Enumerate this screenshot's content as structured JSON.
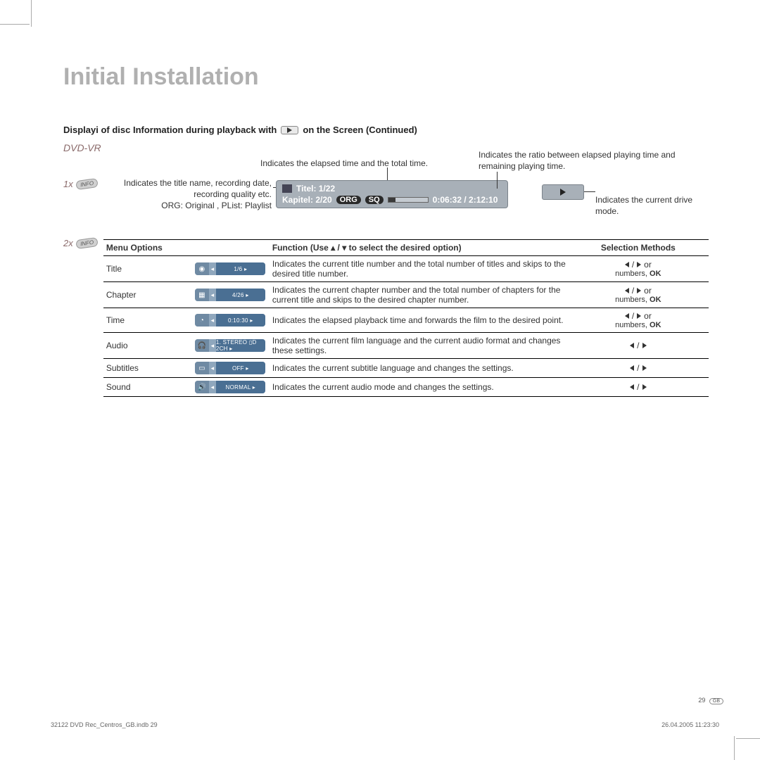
{
  "main_title": "Initial Installation",
  "section_title_part1": "Displayi of disc Information during playback with",
  "section_title_part2": "on the Screen (Continued)",
  "dvd_vr": "DVD-VR",
  "press_1x": "1x",
  "press_2x": "2x",
  "info_label": "INFO",
  "annot_elapsed": "Indicates the elapsed time and the total time.",
  "annot_ratio": "Indicates the ratio between elapsed playing time and remaining playing time.",
  "annot_titlename": "Indicates the title name, recording date, recording quality etc.",
  "annot_org": "ORG: Original , PList: Playlist",
  "annot_drive": "Indicates the current drive mode.",
  "badge": {
    "title": "Titel: 1/22",
    "chapter": "Kapitel: 2/20",
    "tag1": "ORG",
    "tag2": "SQ",
    "time": "0:06:32  /  2:12:10",
    "progress_pct": 18
  },
  "table": {
    "head_menu": "Menu Options",
    "head_func_prefix": "Function (Use",
    "head_func_suffix": "to select the desired option)",
    "head_sel": "Selection Methods",
    "rows": [
      {
        "label": "Title",
        "chip_icon": "◉",
        "chip_val": "1/6",
        "func": "Indicates the current title number and the total number of titles and skips to the desired title number.",
        "sel_type": "lr_or_numbers"
      },
      {
        "label": "Chapter",
        "chip_icon": "▦",
        "chip_val": "4/26",
        "func": "Indicates the current chapter number and the total number of chapters for the current title and skips to the desired chapter number.",
        "sel_type": "lr_or_numbers"
      },
      {
        "label": "Time",
        "chip_icon": "◔",
        "chip_val": "0:10:30",
        "func": "Indicates the elapsed playback time and forwards the film to the desired point.",
        "sel_type": "lr_or_numbers"
      },
      {
        "label": "Audio",
        "chip_icon": "🎧",
        "chip_val": "1. STEREO ▯D 2CH",
        "func": "Indicates the current film language and the current audio format and changes these settings.",
        "sel_type": "lr"
      },
      {
        "label": "Subtitles",
        "chip_icon": "▭",
        "chip_val": "OFF",
        "func": "Indicates the current subtitle language and changes the settings.",
        "sel_type": "lr"
      },
      {
        "label": "Sound",
        "chip_icon": "🔊",
        "chip_val": "NORMAL",
        "func": "Indicates the current audio mode and changes the settings.",
        "sel_type": "lr"
      }
    ],
    "or_text": "or",
    "numbers_text": "numbers,",
    "ok_text": "OK"
  },
  "footer": {
    "page_num": "29",
    "gb": "GB",
    "left": "32122 DVD Rec_Centros_GB.indb   29",
    "right": "26.04.2005   11:23:30"
  },
  "colors": {
    "title_gray": "#b0b0b0",
    "badge_bg": "#a8b0b8",
    "chip_bg": "#8fa7bd",
    "chip_val_bg": "#4a6f93"
  }
}
